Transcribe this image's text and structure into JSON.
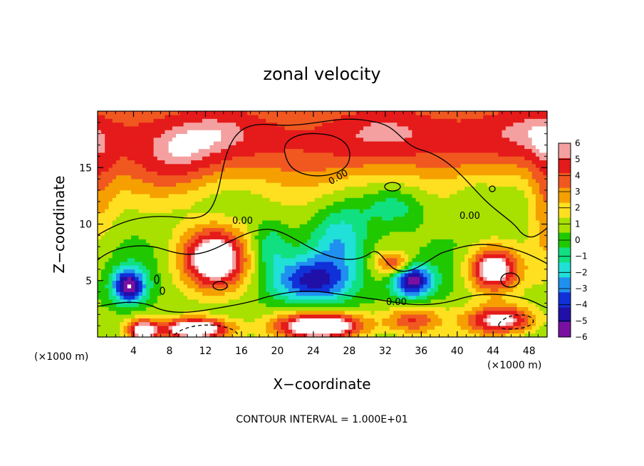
{
  "chart_data": {
    "type": "heatmap",
    "title": "zonal velocity",
    "xlabel": "X−coordinate",
    "ylabel": "Z−coordinate",
    "x_unit": "(×1000 m)",
    "y_unit": "(×1000 m)",
    "xlim": [
      0,
      50
    ],
    "ylim": [
      0,
      20
    ],
    "x_ticks": [
      4,
      8,
      12,
      16,
      20,
      24,
      28,
      32,
      36,
      40,
      44,
      48
    ],
    "y_ticks": [
      5,
      10,
      15
    ],
    "colorbar": {
      "min": -6,
      "max": 6,
      "ticks": [
        "6",
        "5",
        "4",
        "3",
        "2",
        "1",
        "0",
        "−1",
        "−2",
        "−3",
        "−4",
        "−5",
        "−6"
      ],
      "colors": [
        "#f4a0a0",
        "#e51a1a",
        "#f05820",
        "#f5a000",
        "#ffe020",
        "#a8e000",
        "#20c800",
        "#10e080",
        "#20e0d8",
        "#2090f0",
        "#1030d8",
        "#2010a8",
        "#7a10a0"
      ]
    },
    "contour_labels": [
      "0.00",
      "0.00",
      "0.00",
      "0.00"
    ],
    "contour_interval_text": "CONTOUR INTERVAL = 1.000E+01",
    "field_features": [
      {
        "x": 7,
        "z": 18,
        "sx": 30,
        "sz": 4,
        "value": 4.5
      },
      {
        "x": 47,
        "z": 18,
        "sx": 20,
        "sz": 4,
        "value": 4
      },
      {
        "x": 50,
        "z": 12,
        "sx": 2,
        "sz": 5,
        "value": 3
      },
      {
        "x": 0,
        "z": 13,
        "sx": 2,
        "sz": 5,
        "value": 2
      },
      {
        "x": 3.5,
        "z": 4.5,
        "sx": 1.8,
        "sz": 1.5,
        "value": -7
      },
      {
        "x": 13,
        "z": 7,
        "sx": 3.8,
        "sz": 2.8,
        "value": 7
      },
      {
        "x": 5,
        "z": 0.6,
        "sx": 1.6,
        "sz": 0.9,
        "value": 6
      },
      {
        "x": 11,
        "z": 0.7,
        "sx": 4,
        "sz": 1.0,
        "value": 8
      },
      {
        "x": 25,
        "z": 1.0,
        "sx": 5,
        "sz": 1.2,
        "value": 8
      },
      {
        "x": 35,
        "z": 1.5,
        "sx": 3,
        "sz": 1.3,
        "value": 4
      },
      {
        "x": 45,
        "z": 1.5,
        "sx": 4,
        "sz": 1.3,
        "value": 6
      },
      {
        "x": 44,
        "z": 6,
        "sx": 2.8,
        "sz": 2.0,
        "value": 7
      },
      {
        "x": 35,
        "z": 5,
        "sx": 2.2,
        "sz": 1.5,
        "value": -7
      },
      {
        "x": 24,
        "z": 5,
        "sx": 4.5,
        "sz": 2.0,
        "value": -5
      },
      {
        "x": 27,
        "z": 8.5,
        "sx": 3,
        "sz": 3,
        "value": -3
      },
      {
        "x": 33,
        "z": 11.5,
        "sx": 3,
        "sz": 1.5,
        "value": -1.5
      },
      {
        "x": 33,
        "z": 6.5,
        "sx": 2,
        "sz": 1,
        "value": 4
      },
      {
        "x": 19,
        "z": 8,
        "sx": 2,
        "sz": 2,
        "value": -2
      },
      {
        "x": 25,
        "z": 15,
        "sx": 8,
        "sz": 3,
        "value": 0.5
      },
      {
        "x": 9,
        "z": 15,
        "sx": 5,
        "sz": 3,
        "value": 2
      },
      {
        "x": 42,
        "z": 13,
        "sx": 3,
        "sz": 2,
        "value": -1
      }
    ]
  }
}
